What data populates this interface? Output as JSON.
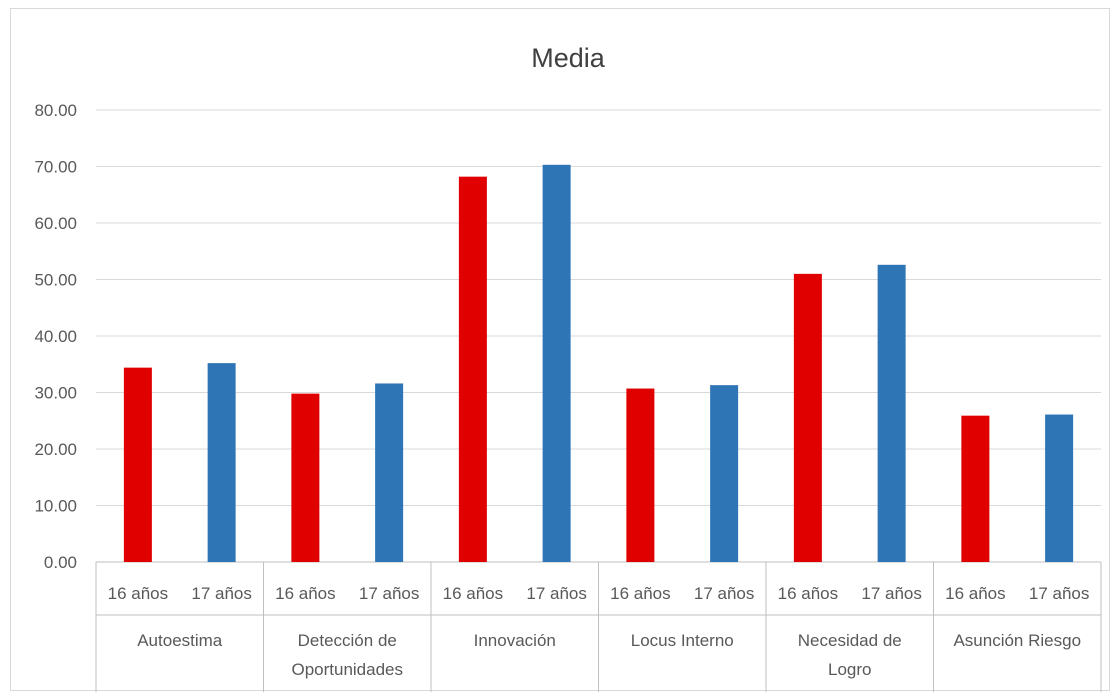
{
  "chart_data": {
    "type": "bar",
    "title": "Media",
    "xlabel": "",
    "ylabel": "",
    "ylim": [
      0,
      80
    ],
    "yticks": [
      "0.00",
      "10.00",
      "20.00",
      "30.00",
      "40.00",
      "50.00",
      "60.00",
      "70.00",
      "80.00"
    ],
    "grid": true,
    "legend": "none",
    "groups": [
      {
        "label_lines": [
          "Autoestima"
        ]
      },
      {
        "label_lines": [
          "Detección de",
          "Oportunidades"
        ]
      },
      {
        "label_lines": [
          "Innovación"
        ]
      },
      {
        "label_lines": [
          "Locus Interno"
        ]
      },
      {
        "label_lines": [
          "Necesidad de",
          "Logro"
        ]
      },
      {
        "label_lines": [
          "Asunción Riesgo"
        ]
      }
    ],
    "subcategories": [
      "16 años",
      "17 años"
    ],
    "bar_colors": [
      "#e00000",
      "#2e75b6"
    ],
    "values": [
      [
        34.4,
        35.2
      ],
      [
        29.8,
        31.6
      ],
      [
        68.2,
        70.3
      ],
      [
        30.7,
        31.3
      ],
      [
        51.0,
        52.6
      ],
      [
        25.9,
        26.1
      ]
    ]
  }
}
